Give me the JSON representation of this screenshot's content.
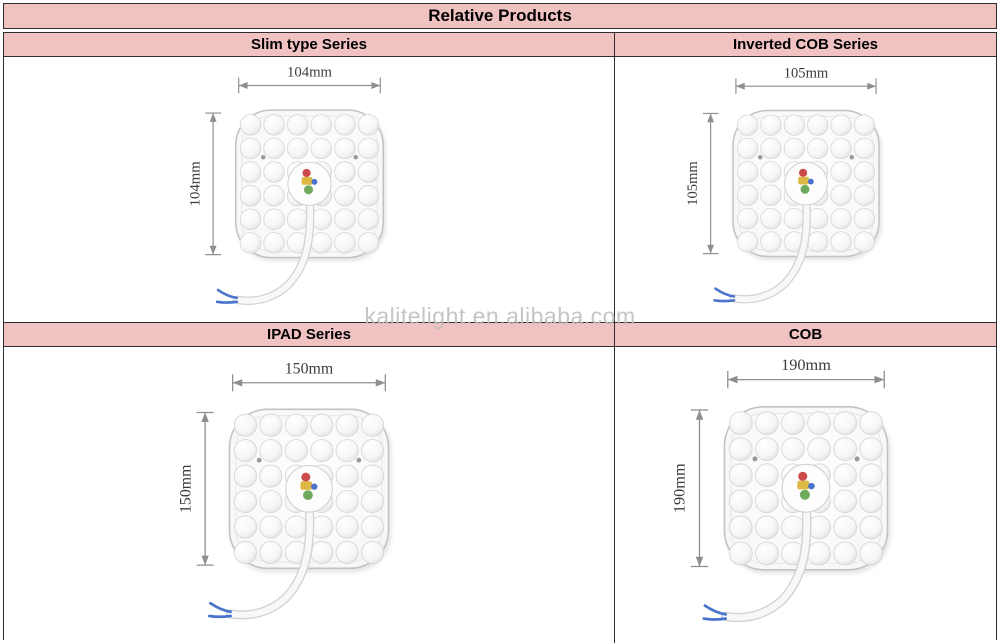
{
  "header": {
    "title": "Relative Products"
  },
  "watermark": "kalitelight.en.alibaba.com",
  "colors": {
    "header_bg": "#f0c2c2",
    "border": "#2e2e2e"
  },
  "products": [
    {
      "name": "slim-type",
      "label": "Slim type Series",
      "width_label": "104mm",
      "height_label": "104mm"
    },
    {
      "name": "inverted-cob",
      "label": "Inverted COB Series",
      "width_label": "105mm",
      "height_label": "105mm"
    },
    {
      "name": "ipad",
      "label": "IPAD Series",
      "width_label": "150mm",
      "height_label": "150mm"
    },
    {
      "name": "cob",
      "label": "COB",
      "width_label": "190mm",
      "height_label": "190mm"
    }
  ]
}
